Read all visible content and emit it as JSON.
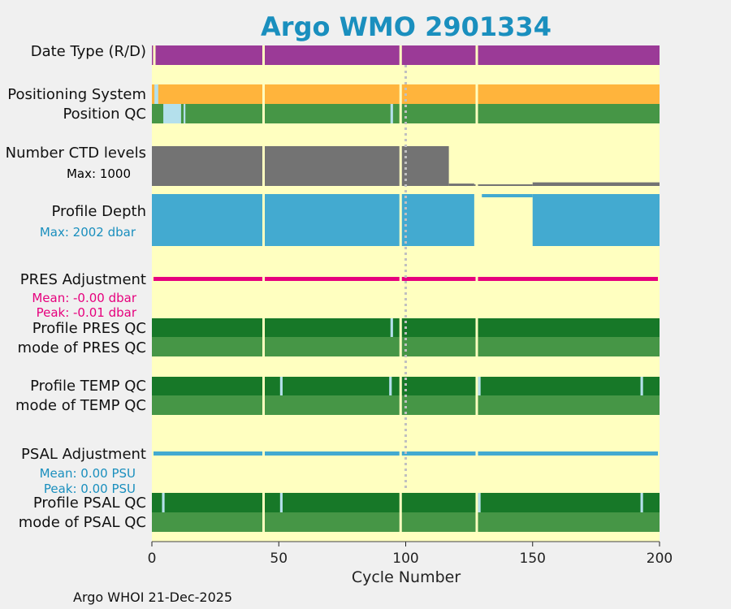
{
  "chart_data": {
    "type": "timeline-status",
    "title": "Argo WMO 2901334",
    "xlabel": "Cycle Number",
    "xlim": [
      0,
      200
    ],
    "xticks": [
      0,
      50,
      100,
      150,
      200
    ],
    "grid": false,
    "footer": "Argo WHOI 21-Dec-2025",
    "colors": {
      "title": "#1a8fbe",
      "background_panel": "#ffffc0",
      "page": "#f0f0f0",
      "purple": "#9b3a97",
      "orange": "#ffb43c",
      "green_mid": "#469646",
      "green_dark": "#177828",
      "light_blue": "#b4e0ec",
      "gray": "#737373",
      "profile_blue": "#43aad0",
      "magenta": "#e6007d",
      "psal_blue": "#43aad0"
    },
    "gap_cycles": [
      44,
      98,
      128
    ],
    "dotted_cycle": 100,
    "rows": [
      {
        "label": "Date Type (R/D)",
        "sublabels": []
      },
      {
        "label": "Positioning System",
        "sublabels": []
      },
      {
        "label": "Position QC",
        "sublabels": []
      },
      {
        "label": "Number CTD levels",
        "sublabels": [
          {
            "text": "Max: 1000",
            "color": "#000000"
          }
        ]
      },
      {
        "label": "Profile Depth",
        "sublabels": [
          {
            "text": "Max: 2002 dbar",
            "color": "#1a8fbe"
          }
        ]
      },
      {
        "label": "PRES Adjustment",
        "sublabels": [
          {
            "text": "Mean: -0.00 dbar",
            "color": "#e6007d"
          },
          {
            "text": "Peak: -0.01 dbar",
            "color": "#e6007d"
          }
        ]
      },
      {
        "label": "Profile PRES QC",
        "sublabels": []
      },
      {
        "label": "mode of PRES QC",
        "sublabels": []
      },
      {
        "label": "Profile TEMP QC",
        "sublabels": []
      },
      {
        "label": "mode of TEMP QC",
        "sublabels": []
      },
      {
        "label": "PSAL Adjustment",
        "sublabels": [
          {
            "text": "Mean: 0.00 PSU",
            "color": "#1a8fbe"
          },
          {
            "text": "Peak: 0.00 PSU",
            "color": "#1a8fbe"
          }
        ]
      },
      {
        "label": "Profile PSAL QC",
        "sublabels": []
      },
      {
        "label": "mode of PSAL QC",
        "sublabels": []
      }
    ],
    "ctd_levels": {
      "max": 1000,
      "segments": [
        {
          "from": 1,
          "to": 117,
          "value": 1000
        },
        {
          "from": 118,
          "to": 127,
          "value": 60
        },
        {
          "from": 128,
          "to": 150,
          "value": 20
        },
        {
          "from": 151,
          "to": 200,
          "value": 90
        }
      ]
    },
    "profile_depth": {
      "max_dbar": 2002,
      "segments": [
        {
          "from": 1,
          "to": 127,
          "value": 2002
        },
        {
          "from": 130,
          "to": 150,
          "value": 0
        },
        {
          "from": 151,
          "to": 200,
          "value": 2002
        }
      ]
    }
  }
}
